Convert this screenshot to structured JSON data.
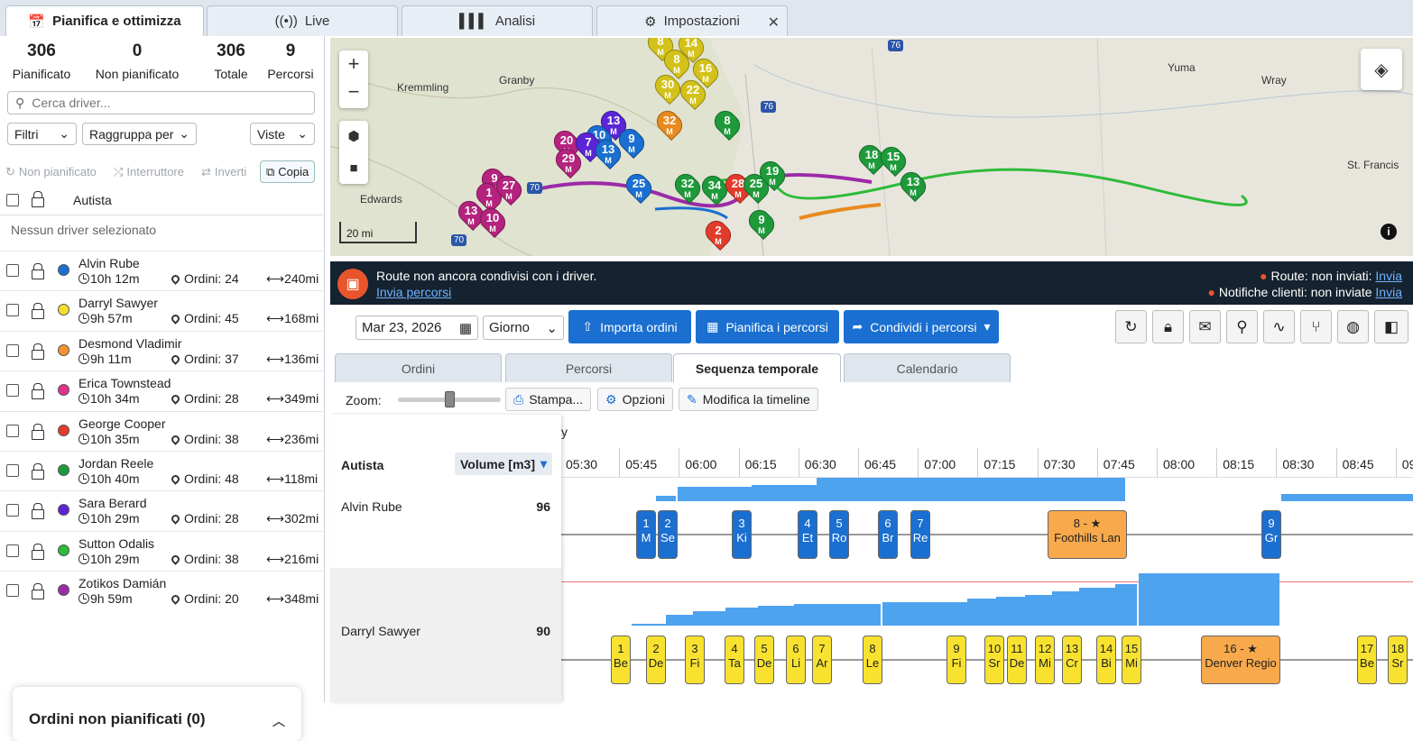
{
  "tabs": [
    {
      "label": "Pianifica e ottimizza"
    },
    {
      "label": "Live"
    },
    {
      "label": "Analisi"
    },
    {
      "label": "Impostazioni"
    }
  ],
  "stats": [
    {
      "n": "306",
      "l": "Pianificato"
    },
    {
      "n": "0",
      "l": "Non pianificato"
    },
    {
      "n": "306",
      "l": "Totale"
    },
    {
      "n": "9",
      "l": "Percorsi"
    }
  ],
  "search": {
    "placeholder": "Cerca driver..."
  },
  "filters": {
    "filtri": "Filtri",
    "raggruppa": "Raggruppa per",
    "viste": "Viste"
  },
  "actions": {
    "non_pianificato": "Non pianificato",
    "interruttore": "Interruttore",
    "inverti": "Inverti",
    "copia": "Copia"
  },
  "list_header": "Autista",
  "no_driver": "Nessun driver selezionato",
  "drivers": [
    {
      "name": "Alvin Rube",
      "time": "10h 12m",
      "orders": "Ordini: 24",
      "dist": "240mi",
      "color": "#1a6fd0"
    },
    {
      "name": "Darryl Sawyer",
      "time": "9h 57m",
      "orders": "Ordini: 45",
      "dist": "168mi",
      "color": "#f5dd2f"
    },
    {
      "name": "Desmond Vladimir",
      "time": "9h 11m",
      "orders": "Ordini: 37",
      "dist": "136mi",
      "color": "#f39230"
    },
    {
      "name": "Erica Townstead",
      "time": "10h 34m",
      "orders": "Ordini: 28",
      "dist": "349mi",
      "color": "#e0338a"
    },
    {
      "name": "George Cooper",
      "time": "10h 35m",
      "orders": "Ordini: 38",
      "dist": "236mi",
      "color": "#e33b2a"
    },
    {
      "name": "Jordan Reele",
      "time": "10h 40m",
      "orders": "Ordini: 48",
      "dist": "118mi",
      "color": "#1f9a3b"
    },
    {
      "name": "Sara Berard",
      "time": "10h 29m",
      "orders": "Ordini: 28",
      "dist": "302mi",
      "color": "#5b25d6"
    },
    {
      "name": "Sutton Odalis",
      "time": "10h 29m",
      "orders": "Ordini: 38",
      "dist": "216mi",
      "color": "#2dbb3a"
    },
    {
      "name": "Zotikos Damián",
      "time": "9h 59m",
      "orders": "Ordini: 20",
      "dist": "348mi",
      "color": "#9b2aa8"
    }
  ],
  "unplanned": "Ordini non pianificati (0)",
  "map": {
    "places": [
      "Kremmling",
      "Granby",
      "Edwards",
      "Yuma",
      "Wray",
      "St. Francis"
    ],
    "scale": "20 mi",
    "highways": [
      "76",
      "76",
      "70",
      "70"
    ]
  },
  "banner": {
    "text": "Route non ancora condivisi con i driver.",
    "link": "Invia percorsi",
    "route_status": "Route: non inviati",
    "route_link": "Invia",
    "notif_status": "Notifiche clienti: non inviate",
    "notif_link": "Invia"
  },
  "toolbar": {
    "date": "Mar 23, 2026",
    "period": "Giorno",
    "import": "Importa ordini",
    "plan": "Pianifica i percorsi",
    "share": "Condividi i percorsi"
  },
  "view_tabs": [
    "Ordini",
    "Percorsi",
    "Sequenza temporale",
    "Calendario"
  ],
  "timeline": {
    "zoom_label": "Zoom:",
    "stampa": "Stampa...",
    "opzioni": "Opzioni",
    "modifica": "Modifica la timeline",
    "col_driver": "Autista",
    "col_volume": "Volume [m3]",
    "day_fragment": "y",
    "hours": [
      "05:30",
      "05:45",
      "06:00",
      "06:15",
      "06:30",
      "06:45",
      "07:00",
      "07:15",
      "07:30",
      "07:45",
      "08:00",
      "08:15",
      "08:30",
      "08:45",
      "09"
    ],
    "rows": [
      {
        "name": "Alvin Rube",
        "volume": "96"
      },
      {
        "name": "Darryl Sawyer",
        "volume": "90"
      }
    ],
    "stops1": [
      {
        "n": "1",
        "t": "M"
      },
      {
        "n": "2",
        "t": "Se"
      },
      {
        "n": "3",
        "t": "Ki"
      },
      {
        "n": "4",
        "t": "Et"
      },
      {
        "n": "5",
        "t": "Ro"
      },
      {
        "n": "6",
        "t": "Br"
      },
      {
        "n": "7",
        "t": "Re"
      },
      {
        "n": "8 - ★",
        "t": "Foothills Lan"
      },
      {
        "n": "9",
        "t": "Gr"
      }
    ],
    "stops2": [
      {
        "n": "1",
        "t": "Be"
      },
      {
        "n": "2",
        "t": "De"
      },
      {
        "n": "3",
        "t": "Fi"
      },
      {
        "n": "4",
        "t": "Ta"
      },
      {
        "n": "5",
        "t": "De"
      },
      {
        "n": "6",
        "t": "Li"
      },
      {
        "n": "7",
        "t": "Ar"
      },
      {
        "n": "8",
        "t": "Le"
      },
      {
        "n": "9",
        "t": "Fi"
      },
      {
        "n": "10",
        "t": "Sr"
      },
      {
        "n": "11",
        "t": "De"
      },
      {
        "n": "12",
        "t": "Mi"
      },
      {
        "n": "13",
        "t": "Cr"
      },
      {
        "n": "14",
        "t": "Bi"
      },
      {
        "n": "15",
        "t": "Mi"
      },
      {
        "n": "16 - ★",
        "t": "Denver Regio"
      },
      {
        "n": "17",
        "t": "Be"
      },
      {
        "n": "18",
        "t": "Sr"
      }
    ]
  },
  "map_pins": [
    [
      "8",
      "#d4c21a"
    ],
    [
      "14",
      "#d4c21a"
    ],
    [
      "8",
      "#d4c21a"
    ],
    [
      "16",
      "#d4c21a"
    ],
    [
      "30",
      "#d4c21a"
    ],
    [
      "22",
      "#d4c21a"
    ],
    [
      "32",
      "#e88a1e"
    ],
    [
      "13",
      "#5b25d6"
    ],
    [
      "10",
      "#1a6fd0"
    ],
    [
      "9",
      "#1a6fd0"
    ],
    [
      "20",
      "#b4237e"
    ],
    [
      "7",
      "#5b25d6"
    ],
    [
      "13",
      "#1a6fd0"
    ],
    [
      "29",
      "#b4237e"
    ],
    [
      "25",
      "#1a6fd0"
    ],
    [
      "9",
      "#b4237e"
    ],
    [
      "1",
      "#b4237e"
    ],
    [
      "27",
      "#b4237e"
    ],
    [
      "13",
      "#b4237e"
    ],
    [
      "10",
      "#b4237e"
    ],
    [
      "32",
      "#1f9a3b"
    ],
    [
      "34",
      "#1f9a3b"
    ],
    [
      "28",
      "#e33b2a"
    ],
    [
      "25",
      "#1f9a3b"
    ],
    [
      "19",
      "#1f9a3b"
    ],
    [
      "9",
      "#1f9a3b"
    ],
    [
      "2",
      "#e33b2a"
    ],
    [
      "18",
      "#1f9a3b"
    ],
    [
      "15",
      "#1f9a3b"
    ],
    [
      "13",
      "#1f9a3b"
    ],
    [
      "8",
      "#1f9a3b"
    ]
  ]
}
